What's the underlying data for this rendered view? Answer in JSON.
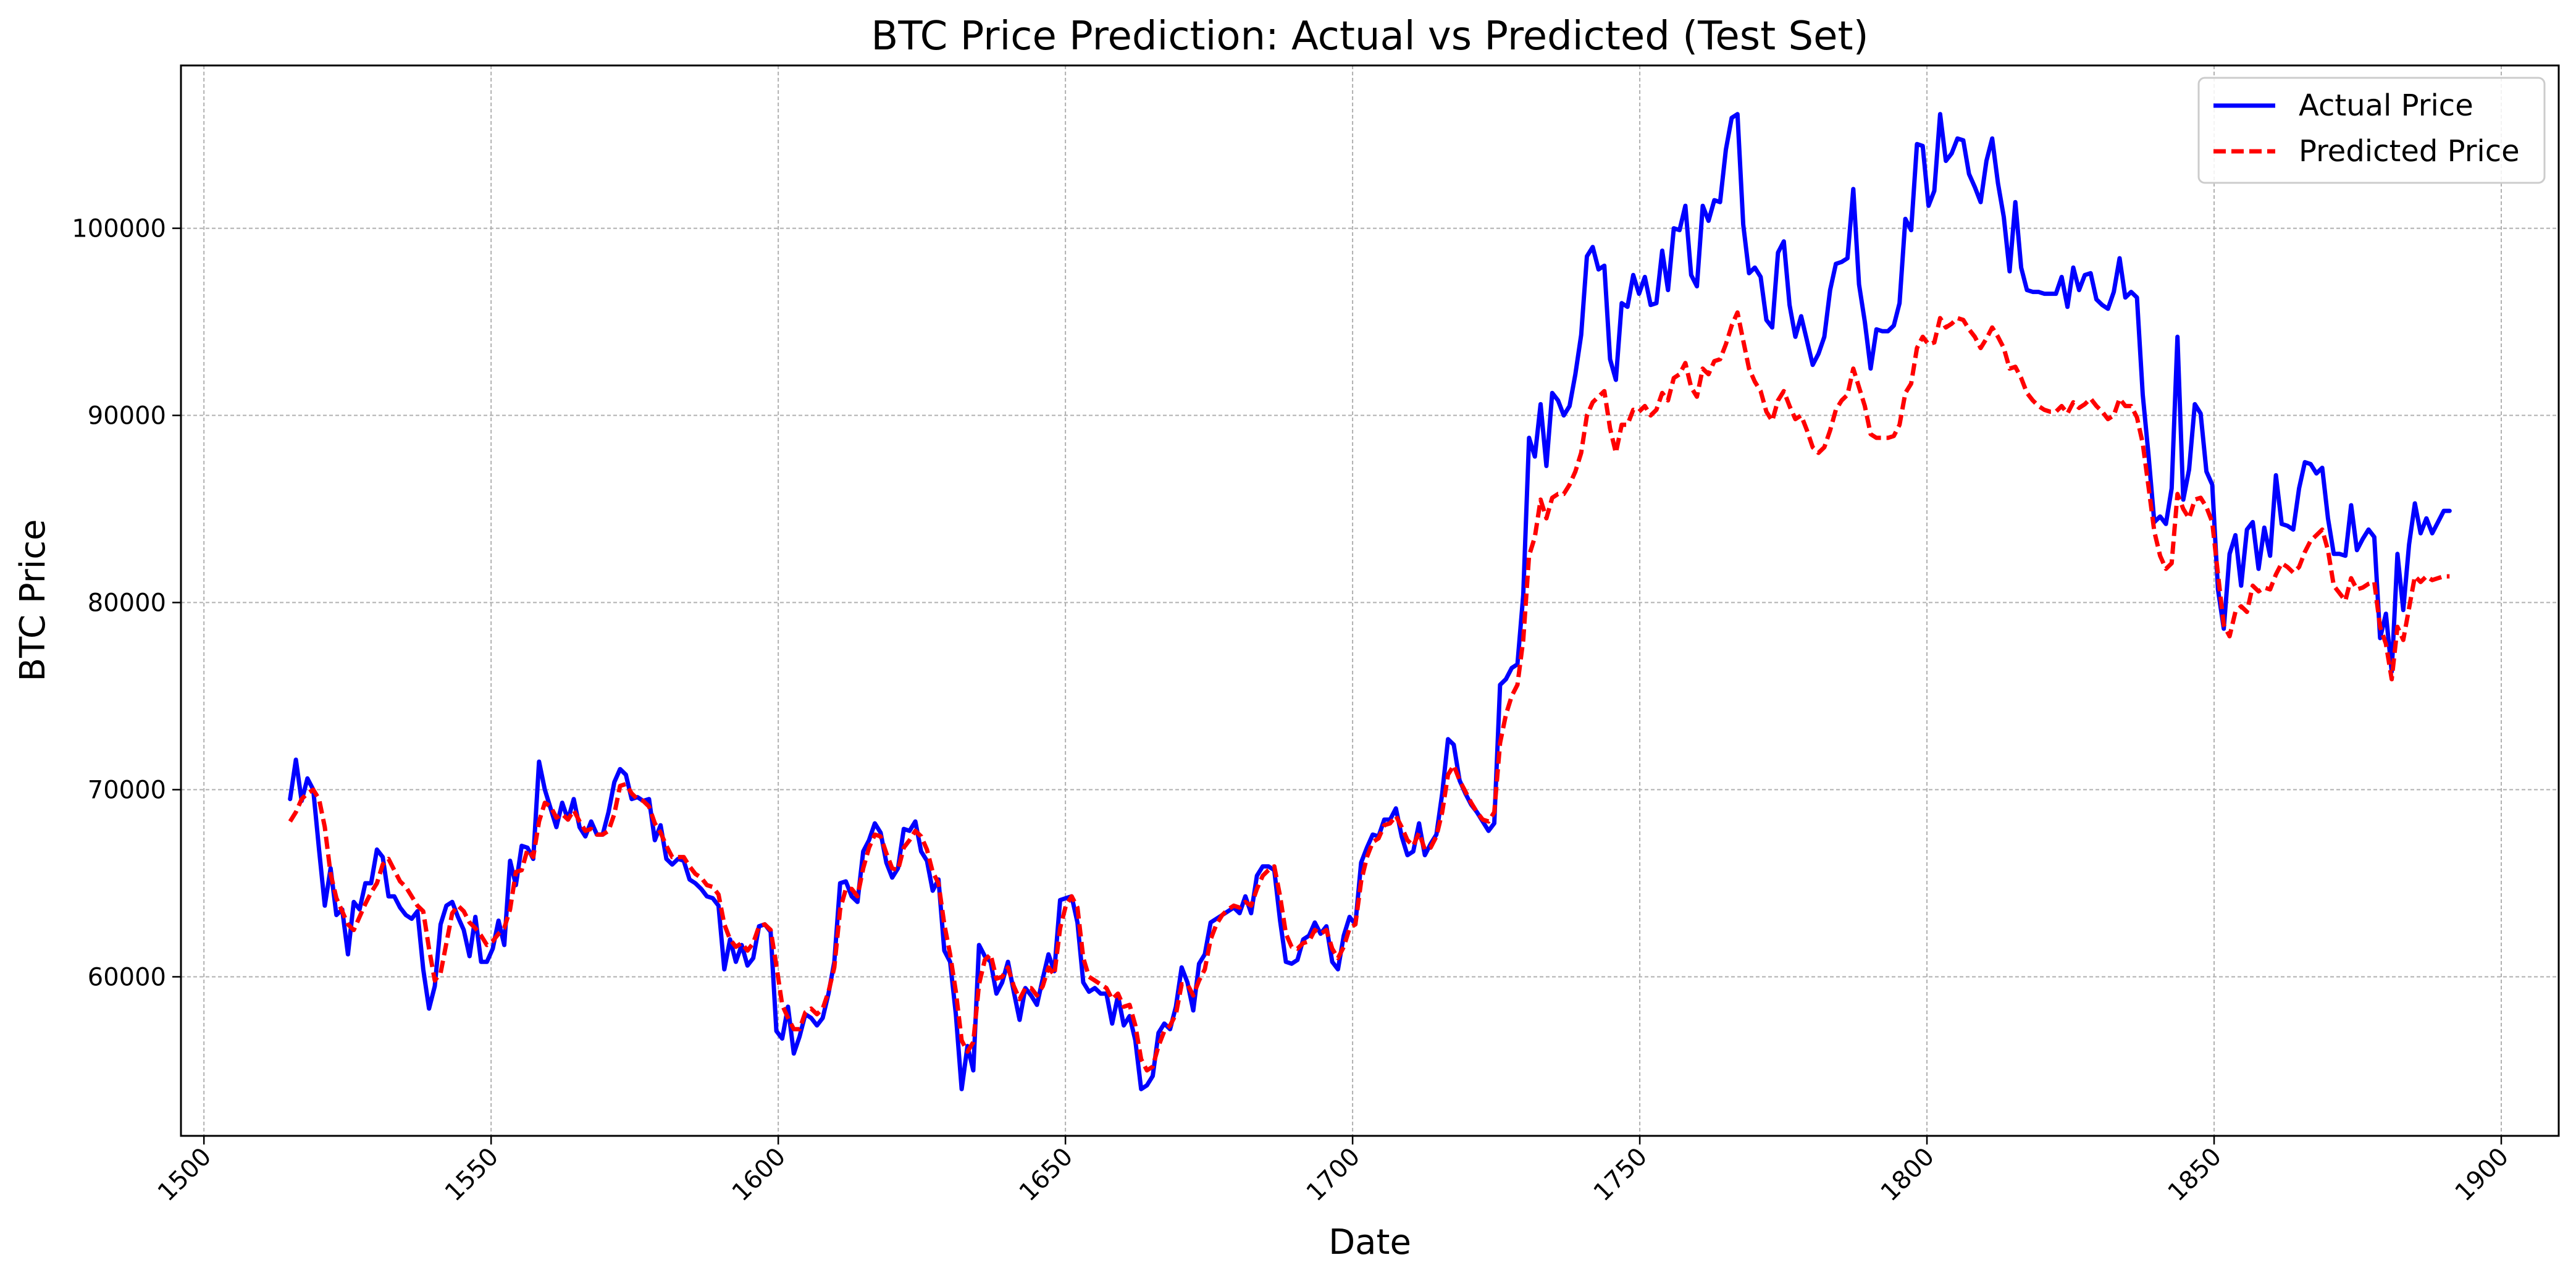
{
  "chart_data": {
    "type": "line",
    "title": "BTC Price Prediction: Actual vs Predicted (Test Set)",
    "xlabel": "Date",
    "ylabel": "BTC Price",
    "xlim": [
      1496,
      1910
    ],
    "ylim": [
      51500,
      108700
    ],
    "x_ticks": [
      1500,
      1550,
      1600,
      1650,
      1700,
      1750,
      1800,
      1850,
      1900
    ],
    "y_ticks": [
      60000,
      70000,
      80000,
      90000,
      100000
    ],
    "grid": true,
    "legend_position": "top-right",
    "x_start": 1515,
    "series": [
      {
        "name": "Actual Price",
        "color": "#0000ff",
        "style": "solid",
        "values": [
          69500,
          71600,
          69400,
          70600,
          70000,
          66800,
          63800,
          65800,
          63300,
          63600,
          61200,
          64000,
          63600,
          65000,
          65000,
          66800,
          66400,
          64300,
          64300,
          63700,
          63300,
          63100,
          63500,
          60400,
          58300,
          59500,
          62800,
          63800,
          64000,
          63200,
          62500,
          61100,
          63200,
          60800,
          60800,
          61500,
          63000,
          61700,
          66200,
          64900,
          67000,
          66900,
          66300,
          71500,
          70000,
          69000,
          68000,
          69300,
          68400,
          69500,
          68000,
          67500,
          68300,
          67600,
          67600,
          68800,
          70400,
          71100,
          70800,
          69500,
          69600,
          69400,
          69500,
          67300,
          68100,
          66300,
          66000,
          66300,
          66200,
          65200,
          65000,
          64700,
          64300,
          64200,
          63800,
          60400,
          62000,
          60800,
          61700,
          60600,
          61000,
          62700,
          62800,
          62400,
          57100,
          56700,
          58400,
          55900,
          56800,
          58000,
          57800,
          57400,
          57800,
          59100,
          60800,
          65000,
          65100,
          64300,
          64000,
          66700,
          67300,
          68200,
          67700,
          66100,
          65300,
          65800,
          67900,
          67800,
          68300,
          66700,
          66200,
          64600,
          65200,
          61400,
          60800,
          58000,
          54000,
          56300,
          55000,
          61700,
          61100,
          60800,
          59100,
          59700,
          60800,
          59200,
          57700,
          59400,
          59000,
          58500,
          59900,
          61200,
          60300,
          64100,
          64200,
          64300,
          62900,
          59700,
          59200,
          59400,
          59100,
          59100,
          57500,
          59000,
          57400,
          57900,
          56600,
          54000,
          54200,
          54700,
          57000,
          57500,
          57200,
          58400,
          60500,
          59700,
          58200,
          60700,
          61200,
          62900,
          63100,
          63300,
          63500,
          63700,
          63400,
          64300,
          63400,
          65400,
          65900,
          65900,
          65700,
          63000,
          60800,
          60700,
          60900,
          62000,
          62200,
          62900,
          62300,
          62700,
          60800,
          60400,
          62200,
          63200,
          62800,
          66100,
          66900,
          67600,
          67500,
          68400,
          68400,
          69000,
          67500,
          66500,
          66700,
          68200,
          66500,
          67100,
          67600,
          69800,
          72700,
          72400,
          70500,
          69800,
          69200,
          68800,
          68300,
          67800,
          68200,
          75600,
          75900,
          76500,
          76700,
          80400,
          88800,
          87800,
          90600,
          87300,
          91200,
          90800,
          90000,
          90500,
          92200,
          94300,
          98500,
          99000,
          97800,
          98000,
          93000,
          91900,
          96000,
          95800,
          97500,
          96500,
          97400,
          95900,
          96000,
          98800,
          96700,
          100000,
          99900,
          101200,
          97500,
          96900,
          101200,
          100400,
          101500,
          101400,
          104200,
          105900,
          106100,
          100200,
          97600,
          97900,
          97400,
          95100,
          94700,
          98700,
          99300,
          95900,
          94200,
          95300,
          94000,
          92700,
          93300,
          94200,
          96700,
          98100,
          98200,
          98400,
          102100,
          97000,
          95000,
          92500,
          94600,
          94500,
          94500,
          94800,
          96000,
          100500,
          99900,
          104500,
          104400,
          101200,
          102000,
          106100,
          103600,
          104000,
          104800,
          104700,
          102900,
          102200,
          101400,
          103600,
          104800,
          102400,
          100600,
          97700,
          101400,
          97900,
          96700,
          96600,
          96600,
          96500,
          96500,
          96500,
          97400,
          95800,
          97900,
          96700,
          97500,
          97600,
          96200,
          95900,
          95700,
          96600,
          98400,
          96300,
          96600,
          96300,
          91100,
          87900,
          84300,
          84600,
          84200,
          86100,
          94200,
          85500,
          87100,
          90600,
          90100,
          87000,
          86300,
          80700,
          78600,
          82600,
          83600,
          80900,
          83900,
          84300,
          81800,
          84000,
          82500,
          86800,
          84200,
          84100,
          83900,
          86100,
          87500,
          87400,
          86900,
          87200,
          84500,
          82600,
          82600,
          82500,
          85200,
          82800,
          83400,
          83900,
          83500,
          78100,
          79400,
          76300,
          82600,
          79600,
          83100,
          85300,
          83700,
          84500,
          83700,
          84300,
          84900,
          84900
        ]
      },
      {
        "name": "Predicted Price",
        "color": "#ff0000",
        "style": "dashed",
        "values": [
          68300,
          68800,
          69500,
          69800,
          70000,
          69500,
          68000,
          65500,
          64200,
          63500,
          62800,
          62500,
          63200,
          63900,
          64500,
          65000,
          66000,
          66300,
          65700,
          65100,
          64800,
          64300,
          63800,
          63500,
          61500,
          59800,
          60200,
          61800,
          63400,
          63800,
          63500,
          62900,
          62600,
          62200,
          61700,
          61900,
          62300,
          62600,
          63600,
          65600,
          65700,
          66800,
          66400,
          68300,
          69300,
          69100,
          68500,
          68700,
          68400,
          68900,
          68300,
          67800,
          67900,
          67600,
          67600,
          67800,
          68700,
          70200,
          70300,
          69800,
          69500,
          69400,
          69100,
          68200,
          67700,
          67000,
          66400,
          66400,
          66400,
          65900,
          65500,
          65300,
          64900,
          64800,
          64400,
          62800,
          62000,
          61600,
          61800,
          61400,
          61800,
          62700,
          62800,
          62500,
          60600,
          58500,
          57800,
          57200,
          57200,
          58100,
          58300,
          58000,
          58300,
          59200,
          60500,
          63600,
          64700,
          64700,
          64300,
          65800,
          66900,
          67600,
          67500,
          66600,
          65800,
          65700,
          66900,
          67300,
          67800,
          67500,
          66800,
          65600,
          65000,
          62800,
          61200,
          59200,
          56600,
          56000,
          56500,
          59600,
          60900,
          61200,
          59900,
          60000,
          60500,
          59500,
          58800,
          59400,
          59400,
          59000,
          59500,
          60500,
          60100,
          62600,
          63800,
          64300,
          63700,
          61000,
          60000,
          59800,
          59600,
          59400,
          58800,
          59100,
          58400,
          58500,
          57400,
          55600,
          55000,
          55200,
          56300,
          57100,
          57400,
          58000,
          59600,
          59600,
          59000,
          59800,
          60400,
          62000,
          62800,
          63300,
          63600,
          63800,
          63700,
          64000,
          63800,
          64700,
          65400,
          65700,
          65900,
          64300,
          62300,
          61600,
          61500,
          61800,
          61900,
          62500,
          62300,
          62500,
          61500,
          61000,
          61600,
          62600,
          62800,
          65100,
          66400,
          67200,
          67400,
          68100,
          68200,
          68600,
          68000,
          67300,
          67000,
          67700,
          66800,
          66900,
          67500,
          68800,
          70800,
          71300,
          70500,
          69900,
          69300,
          68800,
          68400,
          68300,
          68800,
          72500,
          74000,
          75000,
          75600,
          78000,
          82500,
          83500,
          85500,
          84500,
          85600,
          85800,
          85800,
          86300,
          87000,
          88000,
          90000,
          90700,
          91000,
          91300,
          89300,
          88000,
          89500,
          89500,
          90300,
          90200,
          90500,
          90000,
          90300,
          91200,
          90800,
          92000,
          92200,
          92800,
          91500,
          91000,
          92500,
          92200,
          92900,
          93000,
          93800,
          94800,
          95500,
          94000,
          92500,
          91800,
          91300,
          90200,
          89700,
          90800,
          91300,
          90500,
          89800,
          90000,
          89200,
          88300,
          88000,
          88300,
          89200,
          90300,
          90800,
          91100,
          92500,
          91500,
          90500,
          89000,
          88800,
          88800,
          88800,
          88900,
          89500,
          91200,
          91700,
          93600,
          94200,
          93800,
          93900,
          95200,
          94700,
          94900,
          95200,
          95100,
          94600,
          94200,
          93600,
          94100,
          94700,
          94200,
          93600,
          92500,
          92600,
          92000,
          91200,
          90800,
          90500,
          90300,
          90200,
          90200,
          90500,
          90100,
          90700,
          90400,
          90600,
          90900,
          90500,
          90200,
          89800,
          90000,
          90900,
          90500,
          90500,
          89900,
          88500,
          86200,
          83800,
          82500,
          81800,
          82100,
          85800,
          85000,
          84500,
          85500,
          85600,
          85100,
          84300,
          81500,
          78800,
          78200,
          79500,
          79800,
          79500,
          80900,
          80600,
          80800,
          80700,
          81500,
          82100,
          81900,
          81600,
          81900,
          82700,
          83300,
          83600,
          83900,
          82800,
          80900,
          80500,
          80100,
          81300,
          80700,
          80800,
          81000,
          81100,
          78700,
          77800,
          75900,
          78700,
          78000,
          79700,
          81400,
          81100,
          81400,
          81200,
          81300,
          81400,
          81400
        ]
      }
    ]
  }
}
